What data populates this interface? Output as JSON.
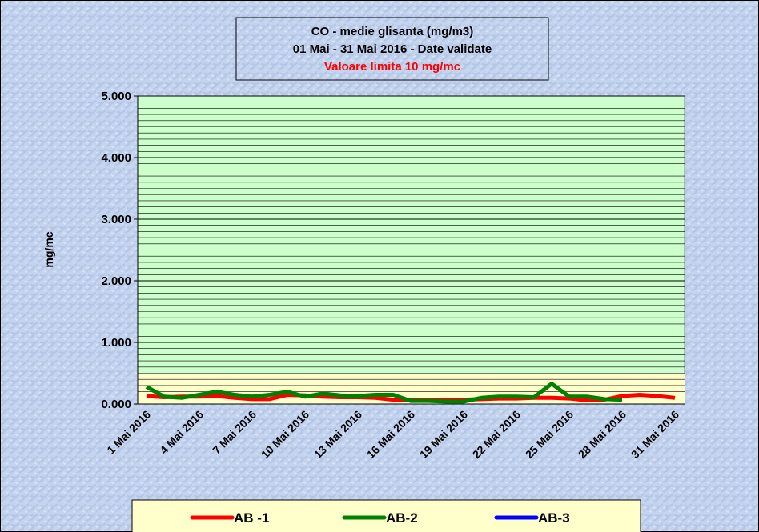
{
  "chart_data": {
    "type": "line",
    "title": "CO - medie glisanta (mg/m3)",
    "subtitle": "01 Mai  -  31 Mai 2016 - Date validate",
    "annotation": "Valoare limita 10 mg/mc",
    "y_label": "mg/mc",
    "categories": [
      "1 Mai 2016",
      null,
      null,
      "4 Mai 2016",
      null,
      null,
      "7 Mai 2016",
      null,
      null,
      "10 Mai 2016",
      null,
      null,
      "13 Mai 2016",
      null,
      null,
      "16 Mai 2016",
      null,
      null,
      "19 Mai 2016",
      null,
      null,
      "22 Mai 2016",
      null,
      null,
      "25 Mai 2016",
      null,
      null,
      "28 Mai 2016",
      null,
      null,
      "31 Mai 2016"
    ],
    "series": [
      {
        "name": "AB -1",
        "color": "#ff0000",
        "values": [
          0.13,
          0.11,
          0.12,
          0.12,
          0.13,
          0.1,
          0.08,
          0.08,
          0.15,
          0.14,
          0.12,
          0.11,
          0.11,
          0.1,
          0.07,
          0.07,
          0.06,
          0.06,
          0.07,
          0.08,
          0.09,
          0.09,
          0.1,
          0.1,
          0.09,
          0.06,
          0.07,
          0.13,
          0.15,
          0.13,
          0.1
        ]
      },
      {
        "name": "AB-2",
        "color": "#008000",
        "values": [
          0.28,
          0.12,
          0.1,
          0.15,
          0.2,
          0.15,
          0.12,
          0.15,
          0.2,
          0.12,
          0.17,
          0.14,
          0.13,
          0.15,
          0.15,
          0.05,
          0.05,
          0.04,
          0.04,
          0.1,
          0.12,
          0.12,
          0.11,
          0.33,
          0.12,
          0.12,
          0.08,
          0.07,
          null,
          null,
          null
        ]
      },
      {
        "name": "AB-3",
        "color": "#0000ff",
        "values": [
          null,
          null,
          null,
          null,
          null,
          null,
          null,
          null,
          null,
          null,
          null,
          null,
          null,
          null,
          null,
          null,
          null,
          null,
          null,
          null,
          null,
          null,
          null,
          null,
          null,
          null,
          null,
          null,
          null,
          null,
          null
        ]
      }
    ],
    "ylim": [
      0,
      5
    ],
    "yticks": [
      {
        "value": 0,
        "label": "0.000"
      },
      {
        "value": 1,
        "label": "1.000"
      },
      {
        "value": 2,
        "label": "2.000"
      },
      {
        "value": 3,
        "label": "3.000"
      },
      {
        "value": 4,
        "label": "4.000"
      },
      {
        "value": 5,
        "label": "5.000"
      }
    ],
    "grid": true,
    "minor_grid": true,
    "band": {
      "from": 0,
      "to": 0.5,
      "color": "#ffffcc"
    },
    "plot_color": "#ccffcc",
    "legend": "bottom"
  }
}
